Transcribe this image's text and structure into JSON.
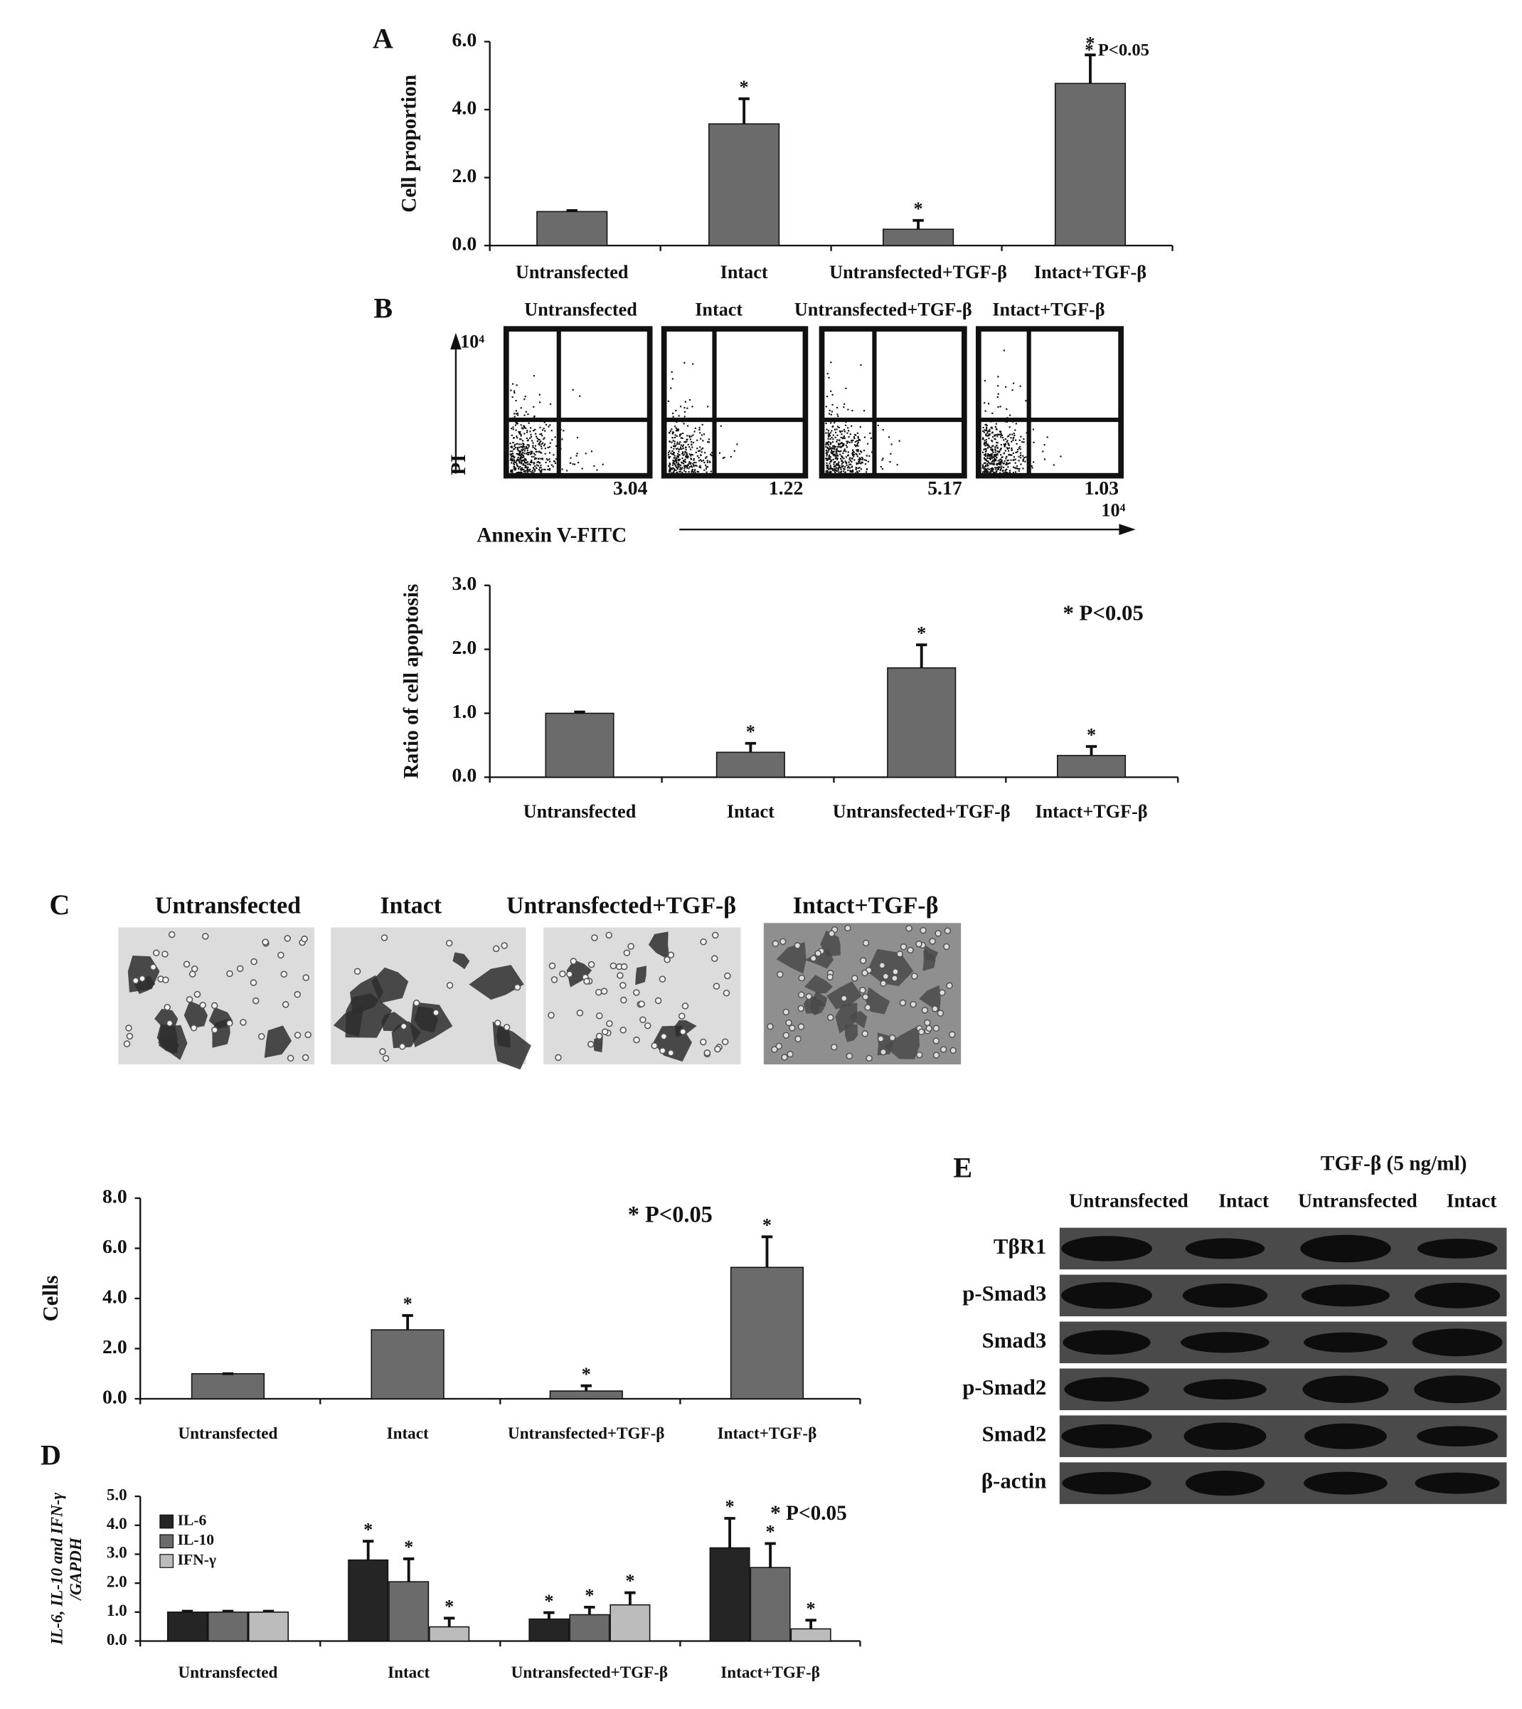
{
  "panel_labels": [
    "A",
    "B",
    "C",
    "D",
    "E"
  ],
  "chart_data": [
    {
      "type": "bar",
      "y_label": "Cell proportion",
      "annotation": "* P<0.05",
      "color": "#6b6b6b",
      "categories": [
        "Untransfected",
        "Intact",
        "Untransfected+TGF-β",
        "Intact+TGF-β"
      ],
      "values": [
        1.0,
        3.58,
        0.48,
        4.77
      ],
      "errors": [
        0.03,
        0.74,
        0.26,
        0.84
      ],
      "significance": [
        null,
        "*",
        "*",
        "*"
      ],
      "ylim": [
        0,
        6
      ],
      "yticks": [
        {
          "value": 0,
          "label": "0.0"
        },
        {
          "value": 2,
          "label": "2.0"
        },
        {
          "value": 4,
          "label": "4.0"
        },
        {
          "value": 6,
          "label": "6.0"
        }
      ]
    },
    {
      "type": "bar",
      "y_label": "Ratio of cell apoptosis",
      "annotation": "* P<0.05",
      "color": "#6b6b6b",
      "categories": [
        "Untransfected",
        "Intact",
        "Untransfected+TGF-β",
        "Intact+TGF-β"
      ],
      "values": [
        1.0,
        0.39,
        1.71,
        0.34
      ],
      "errors": [
        0.02,
        0.14,
        0.36,
        0.14
      ],
      "significance": [
        null,
        "*",
        "*",
        "*"
      ],
      "ylim": [
        0,
        3
      ],
      "yticks": [
        {
          "value": 0,
          "label": "0.0"
        },
        {
          "value": 1,
          "label": "1.0"
        },
        {
          "value": 2,
          "label": "2.0"
        },
        {
          "value": 3,
          "label": "3.0"
        }
      ]
    },
    {
      "type": "bar",
      "y_label": "Cells",
      "annotation": "* P<0.05",
      "color": "#6b6b6b",
      "categories": [
        "Untransfected",
        "Intact",
        "Untransfected+TGF-β",
        "Intact+TGF-β"
      ],
      "values": [
        1.0,
        2.75,
        0.31,
        5.24
      ],
      "errors": [
        0.0,
        0.57,
        0.21,
        1.22
      ],
      "significance": [
        null,
        "*",
        "*",
        "*"
      ],
      "ylim": [
        0,
        8
      ],
      "yticks": [
        {
          "value": 0,
          "label": "0.0"
        },
        {
          "value": 2,
          "label": "2.0"
        },
        {
          "value": 4,
          "label": "4.0"
        },
        {
          "value": 6,
          "label": "6.0"
        },
        {
          "value": 8,
          "label": "8.0"
        }
      ]
    },
    {
      "type": "grouped_bar",
      "y_label": [
        "IL-6, IL-10 and IFN-γ",
        "/GAPDH"
      ],
      "annotation": "* P<0.05",
      "legend": "upper left",
      "categories": [
        "Untransfected",
        "Intact",
        "Untransfected+TGF-β",
        "Intact+TGF-β"
      ],
      "series": [
        {
          "name": "IL-6",
          "color": "#252525",
          "values": [
            1.0,
            2.8,
            0.76,
            3.22
          ],
          "errors": [
            0.03,
            0.65,
            0.22,
            1.02
          ],
          "significance": [
            null,
            "*",
            "*",
            "*"
          ]
        },
        {
          "name": "IL-10",
          "color": "#6b6b6b",
          "values": [
            1.0,
            2.05,
            0.91,
            2.54
          ],
          "errors": [
            0.03,
            0.79,
            0.26,
            0.83
          ],
          "significance": [
            null,
            "*",
            "*",
            "*"
          ]
        },
        {
          "name": "IFN-γ",
          "color": "#bcbcbc",
          "values": [
            1.0,
            0.49,
            1.25,
            0.42
          ],
          "errors": [
            0.03,
            0.3,
            0.42,
            0.3
          ],
          "significance": [
            null,
            "*",
            "*",
            "*"
          ]
        }
      ],
      "ylim": [
        0,
        5
      ],
      "yticks": [
        {
          "value": 0,
          "label": "0.0"
        },
        {
          "value": 1,
          "label": "1.0"
        },
        {
          "value": 2,
          "label": "2.0"
        },
        {
          "value": 3,
          "label": "3.0"
        },
        {
          "value": 4,
          "label": "4.0"
        },
        {
          "value": 5,
          "label": "5.0"
        }
      ]
    }
  ],
  "flow_cytometry": {
    "groups": [
      "Untransfected",
      "Intact",
      "Untransfected+TGF-β",
      "Intact+TGF-β"
    ],
    "values": [
      3.04,
      1.22,
      5.17,
      1.03
    ],
    "y_label": "PI",
    "x_label": "Annexin V-FITC",
    "y_max_label": "10⁴",
    "x_max_label": "10⁴"
  },
  "micrographs": {
    "groups": [
      "Untransfected",
      "Intact",
      "Untransfected+TGF-β",
      "Intact+TGF-β"
    ]
  },
  "western_blot": {
    "treatment": "TGF-β (5 ng/ml)",
    "columns": [
      "Untransfected",
      "Intact",
      "Untransfected",
      "Intact"
    ],
    "rows": [
      "TβR1",
      "p-Smad3",
      "Smad3",
      "p-Smad2",
      "Smad2",
      "β-actin"
    ]
  }
}
